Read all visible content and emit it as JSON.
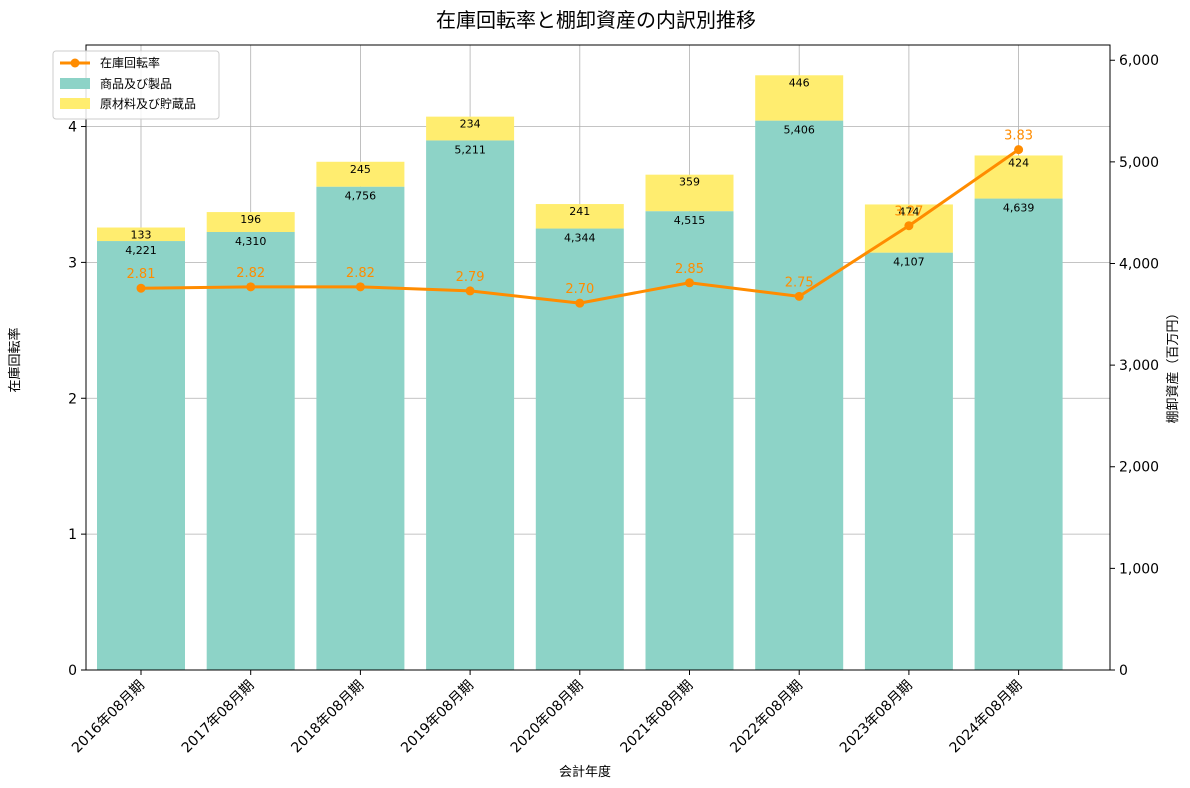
{
  "chart_data": {
    "type": "bar",
    "title": "在庫回転率と棚卸資産の内訳別推移",
    "xlabel": "会計年度",
    "ylabel_left": "在庫回転率",
    "ylabel_right": "棚卸資産（百万円）",
    "categories": [
      "2016年08月期",
      "2017年08月期",
      "2018年08月期",
      "2019年08月期",
      "2020年08月期",
      "2021年08月期",
      "2022年08月期",
      "2023年08月期",
      "2024年08月期"
    ],
    "series": [
      {
        "name": "商品及び製品",
        "axis": "right",
        "kind": "stacked-bar",
        "color": "#8dd3c7",
        "values": [
          4221,
          4310,
          4756,
          5211,
          4344,
          4515,
          5406,
          4107,
          4639
        ],
        "labels": [
          "4,221",
          "4,310",
          "4,756",
          "5,211",
          "4,344",
          "4,515",
          "5,406",
          "4,107",
          "4,639"
        ]
      },
      {
        "name": "原材料及び貯蔵品",
        "axis": "right",
        "kind": "stacked-bar",
        "color": "#ffed6f",
        "values": [
          133,
          196,
          245,
          234,
          241,
          359,
          446,
          474,
          424
        ],
        "labels": [
          "133",
          "196",
          "245",
          "234",
          "241",
          "359",
          "446",
          "474",
          "424"
        ]
      },
      {
        "name": "在庫回転率",
        "axis": "left",
        "kind": "line",
        "color": "#ff8c00",
        "values": [
          2.81,
          2.82,
          2.82,
          2.79,
          2.7,
          2.85,
          2.75,
          3.27,
          3.83
        ],
        "labels": [
          "2.81",
          "2.82",
          "2.82",
          "2.79",
          "2.70",
          "2.85",
          "2.75",
          "3.27",
          "3.83"
        ]
      }
    ],
    "ylim_left": [
      0,
      4.6
    ],
    "yticks_left": [
      0,
      1,
      2,
      3,
      4
    ],
    "ytick_labels_left": [
      "0",
      "1",
      "2",
      "3",
      "4"
    ],
    "ylim_right": [
      0,
      6150
    ],
    "yticks_right": [
      0,
      1000,
      2000,
      3000,
      4000,
      5000,
      6000
    ],
    "ytick_labels_right": [
      "0",
      "1,000",
      "2,000",
      "3,000",
      "4,000",
      "5,000",
      "6,000"
    ],
    "grid": true,
    "legend_position": "top-left"
  }
}
